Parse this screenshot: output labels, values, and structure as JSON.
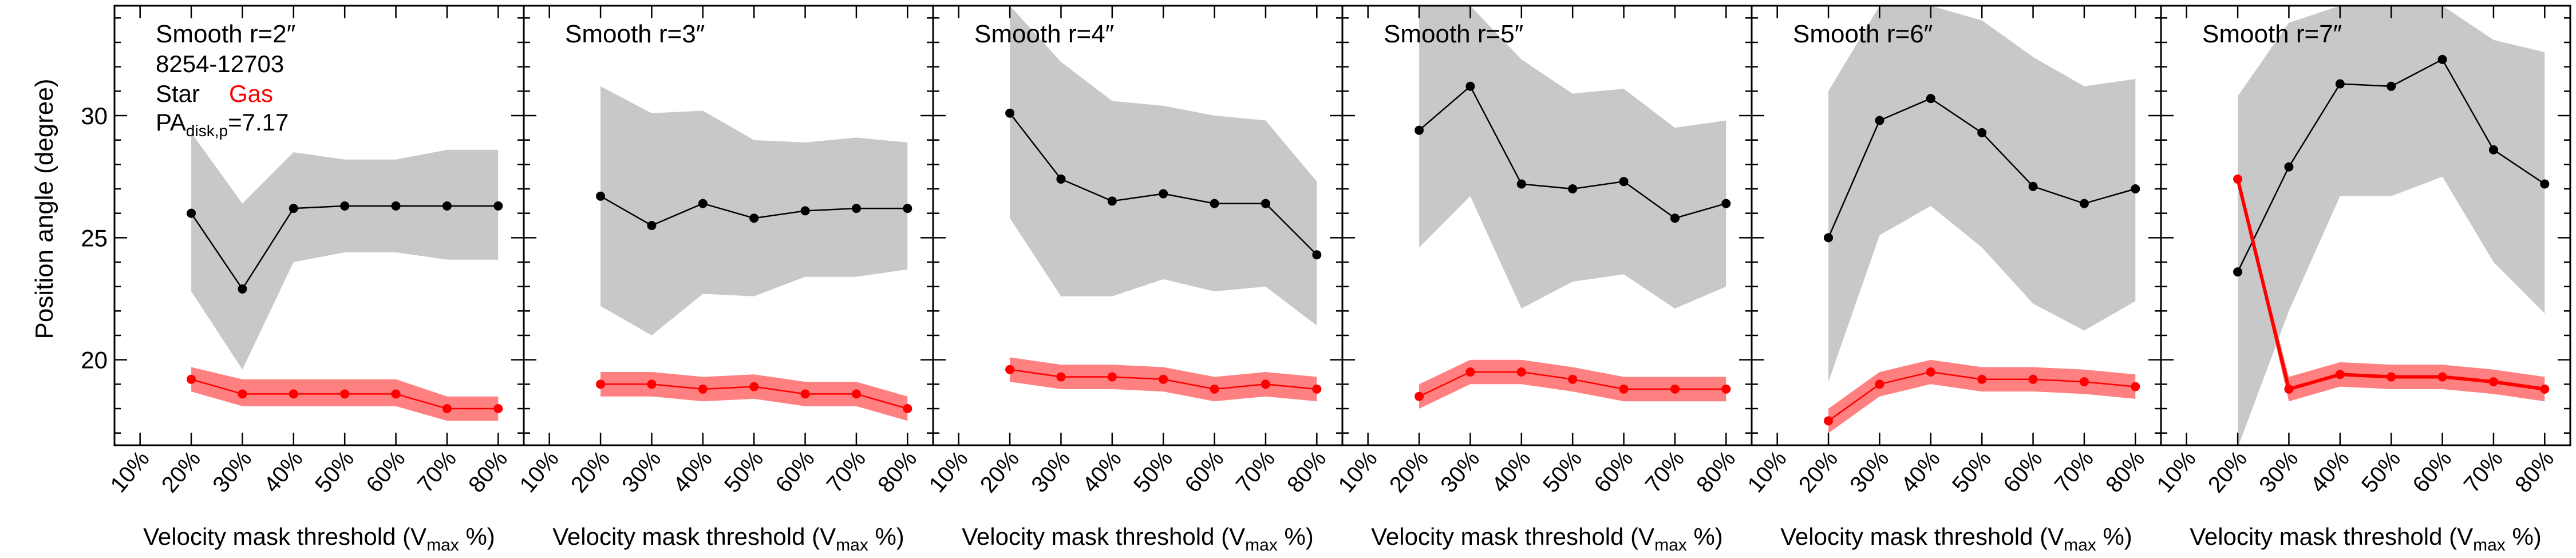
{
  "figure": {
    "ylabel": "Position angle (degree)",
    "xlabel_prefix": "Velocity mask threshold (V",
    "xlabel_sub": "max",
    "xlabel_suffix": " %)",
    "xtick_labels": [
      "10%",
      "20%",
      "30%",
      "40%",
      "50%",
      "60%",
      "70%",
      "80%"
    ],
    "ytick_labels": [
      "20",
      "25",
      "30"
    ],
    "annotation": {
      "galaxy_id": "8254-12703",
      "star_label": "Star",
      "gas_label": "Gas",
      "pa_label_main": "PA",
      "pa_label_sub": "disk,p",
      "pa_label_value": "=7.17"
    },
    "colors": {
      "star": "#000000",
      "star_band": "#c8c8c8",
      "gas": "#ff0000",
      "gas_band": "#ff8080"
    }
  },
  "chart_data": [
    {
      "type": "line",
      "title": "Smooth r=2″",
      "x": [
        20,
        30,
        40,
        50,
        60,
        70,
        80
      ],
      "xlim": [
        5,
        85
      ],
      "ylim": [
        16.5,
        34.5
      ],
      "series": [
        {
          "name": "Star",
          "values": [
            26.0,
            22.9,
            26.2,
            26.3,
            26.3,
            26.3,
            26.3
          ],
          "band_low": [
            22.8,
            19.6,
            24.0,
            24.4,
            24.4,
            24.1,
            24.1
          ],
          "band_high": [
            29.3,
            26.4,
            28.5,
            28.2,
            28.2,
            28.6,
            28.6
          ]
        },
        {
          "name": "Gas",
          "values": [
            19.2,
            18.6,
            18.6,
            18.6,
            18.6,
            18.0,
            18.0
          ],
          "band_low": [
            18.7,
            18.1,
            18.1,
            18.1,
            18.1,
            17.5,
            17.5
          ],
          "band_high": [
            19.7,
            19.2,
            19.2,
            19.2,
            19.2,
            18.5,
            18.5
          ]
        }
      ]
    },
    {
      "type": "line",
      "title": "Smooth r=3″",
      "x": [
        20,
        30,
        40,
        50,
        60,
        70,
        80
      ],
      "xlim": [
        5,
        85
      ],
      "ylim": [
        16.5,
        34.5
      ],
      "series": [
        {
          "name": "Star",
          "values": [
            26.7,
            25.5,
            26.4,
            25.8,
            26.1,
            26.2,
            26.2
          ],
          "band_low": [
            22.2,
            21.0,
            22.7,
            22.6,
            23.4,
            23.4,
            23.7
          ],
          "band_high": [
            31.2,
            30.1,
            30.2,
            29.0,
            28.9,
            29.1,
            28.9
          ]
        },
        {
          "name": "Gas",
          "values": [
            19.0,
            19.0,
            18.8,
            18.9,
            18.6,
            18.6,
            18.0
          ],
          "band_low": [
            18.5,
            18.5,
            18.3,
            18.4,
            18.1,
            18.1,
            17.5
          ],
          "band_high": [
            19.5,
            19.5,
            19.3,
            19.4,
            19.1,
            19.1,
            18.5
          ]
        }
      ]
    },
    {
      "type": "line",
      "title": "Smooth r=4″",
      "x": [
        20,
        30,
        40,
        50,
        60,
        70,
        80
      ],
      "xlim": [
        5,
        85
      ],
      "ylim": [
        16.5,
        34.5
      ],
      "series": [
        {
          "name": "Star",
          "values": [
            30.1,
            27.4,
            26.5,
            26.8,
            26.4,
            26.4,
            24.3
          ],
          "band_low": [
            25.8,
            22.6,
            22.6,
            23.3,
            22.8,
            23.0,
            21.4
          ],
          "band_high": [
            34.5,
            32.2,
            30.6,
            30.4,
            30.0,
            29.8,
            27.3
          ]
        },
        {
          "name": "Gas",
          "values": [
            19.6,
            19.3,
            19.3,
            19.2,
            18.8,
            19.0,
            18.8
          ],
          "band_low": [
            19.1,
            18.8,
            18.8,
            18.7,
            18.3,
            18.5,
            18.3
          ],
          "band_high": [
            20.1,
            19.8,
            19.8,
            19.7,
            19.3,
            19.5,
            19.3
          ]
        }
      ]
    },
    {
      "type": "line",
      "title": "Smooth r=5″",
      "x": [
        20,
        30,
        40,
        50,
        60,
        70,
        80
      ],
      "xlim": [
        5,
        85
      ],
      "ylim": [
        16.5,
        34.5
      ],
      "series": [
        {
          "name": "Star",
          "values": [
            29.4,
            31.2,
            27.2,
            27.0,
            27.3,
            25.8,
            26.4
          ],
          "band_low": [
            24.6,
            26.7,
            22.1,
            23.2,
            23.5,
            22.1,
            23.0
          ],
          "band_high": [
            34.5,
            34.5,
            32.3,
            30.9,
            31.1,
            29.5,
            29.8
          ]
        },
        {
          "name": "Gas",
          "values": [
            18.5,
            19.5,
            19.5,
            19.2,
            18.8,
            18.8,
            18.8
          ],
          "band_low": [
            18.0,
            19.0,
            19.0,
            18.7,
            18.3,
            18.3,
            18.3
          ],
          "band_high": [
            19.0,
            20.0,
            20.0,
            19.7,
            19.3,
            19.3,
            19.3
          ]
        }
      ]
    },
    {
      "type": "line",
      "title": "Smooth r=6″",
      "x": [
        20,
        30,
        40,
        50,
        60,
        70,
        80
      ],
      "xlim": [
        5,
        85
      ],
      "ylim": [
        16.5,
        34.5
      ],
      "series": [
        {
          "name": "Star",
          "values": [
            25.0,
            29.8,
            30.7,
            29.3,
            27.1,
            26.4,
            27.0
          ],
          "band_low": [
            19.1,
            25.1,
            26.3,
            24.6,
            22.3,
            21.2,
            22.4
          ],
          "band_high": [
            31.0,
            34.5,
            34.5,
            33.9,
            32.4,
            31.2,
            31.5
          ]
        },
        {
          "name": "Gas",
          "values": [
            17.5,
            19.0,
            19.5,
            19.2,
            19.2,
            19.1,
            18.9
          ],
          "band_low": [
            17.0,
            18.5,
            19.0,
            18.7,
            18.7,
            18.6,
            18.4
          ],
          "band_high": [
            18.0,
            19.5,
            20.0,
            19.7,
            19.7,
            19.6,
            19.4
          ]
        }
      ]
    },
    {
      "type": "line",
      "title": "Smooth r=7″",
      "x": [
        20,
        30,
        40,
        50,
        60,
        70,
        80
      ],
      "xlim": [
        5,
        85
      ],
      "ylim": [
        16.5,
        34.5
      ],
      "series": [
        {
          "name": "Star",
          "values": [
            23.6,
            27.9,
            31.3,
            31.2,
            32.3,
            28.6,
            27.2
          ],
          "band_low": [
            16.4,
            22.0,
            26.7,
            26.7,
            27.5,
            24.0,
            21.9
          ],
          "band_high": [
            30.8,
            33.8,
            34.5,
            34.5,
            34.5,
            33.1,
            32.6
          ]
        },
        {
          "name": "Gas",
          "values": [
            27.4,
            18.8,
            19.4,
            19.3,
            19.3,
            19.1,
            18.8
          ],
          "band_low": [
            27.4,
            18.3,
            18.9,
            18.8,
            18.8,
            18.6,
            18.3
          ],
          "band_high": [
            27.4,
            19.3,
            19.9,
            19.8,
            19.8,
            19.6,
            19.3
          ]
        }
      ]
    }
  ]
}
